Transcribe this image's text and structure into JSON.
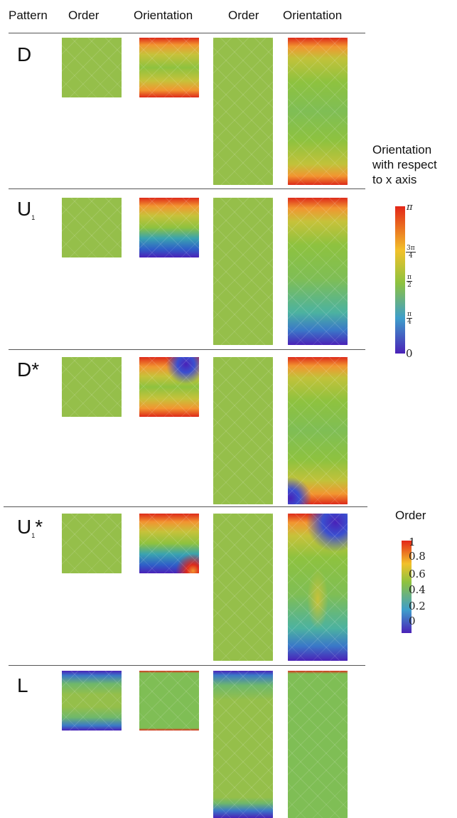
{
  "header": {
    "pattern": "Pattern",
    "order_a": "Order",
    "orientation_a": "Orientation",
    "order_b": "Order",
    "orientation_b": "Orientation"
  },
  "rows": [
    {
      "label": "D",
      "sub": "",
      "star": ""
    },
    {
      "label": "U",
      "sub": "1",
      "star": ""
    },
    {
      "label": "D*",
      "sub": "",
      "star": ""
    },
    {
      "label": "U",
      "sub": "1",
      "star": "*"
    },
    {
      "label": "L",
      "sub": "",
      "star": ""
    }
  ],
  "orientation_legend": {
    "caption": [
      "Orientation",
      "with respect",
      "to x axis"
    ],
    "ticks": {
      "top": "π",
      "three_quarter_num": "3π",
      "three_quarter_den": "4",
      "half_num": "π",
      "half_den": "2",
      "quarter_num": "π",
      "quarter_den": "4",
      "zero": "0"
    },
    "colors": [
      "#e32618",
      "#f2c12a",
      "#8ec23f",
      "#3e9ecb",
      "#4a22b8"
    ]
  },
  "order_legend": {
    "caption": "Order",
    "ticks": [
      "1",
      "0.8",
      "0.6",
      "0.4",
      "0.2",
      "0"
    ],
    "colors": [
      "#e32618",
      "#f2c12a",
      "#8ec23f",
      "#3e9ecb",
      "#4a22b8"
    ]
  }
}
